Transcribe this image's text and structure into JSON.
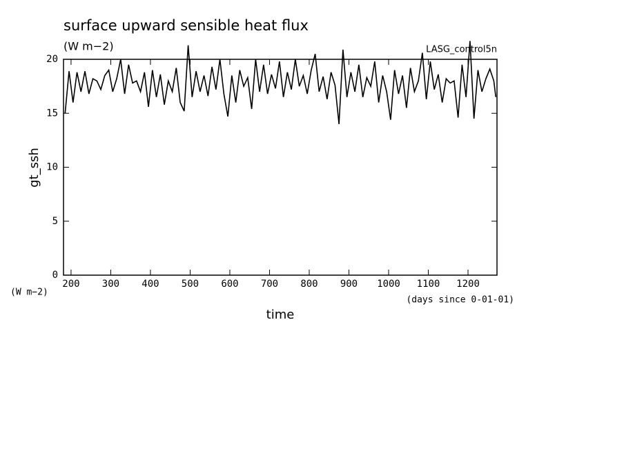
{
  "chart_data": {
    "type": "line",
    "title": "surface upward sensible heat flux",
    "subtitle": "(W m−2)",
    "annotation": "LASG_control5n",
    "ylabel": "gt_ssh",
    "y_units": "(W m−2)",
    "xlabel": "time",
    "x_units": "(days since 0-01-01)",
    "xlim": [
      181,
      1273
    ],
    "ylim": [
      0,
      20
    ],
    "xticks": [
      200,
      300,
      400,
      500,
      600,
      700,
      800,
      900,
      1000,
      1100,
      1200
    ],
    "yticks": [
      0,
      5,
      10,
      15,
      20
    ],
    "series": [
      {
        "color": "#000000",
        "x": [
          185,
          195,
          205,
          215,
          225,
          235,
          245,
          255,
          265,
          275,
          285,
          295,
          305,
          315,
          325,
          335,
          345,
          355,
          365,
          375,
          385,
          395,
          405,
          415,
          425,
          435,
          445,
          455,
          465,
          475,
          485,
          495,
          505,
          515,
          525,
          535,
          545,
          555,
          565,
          575,
          585,
          595,
          605,
          615,
          625,
          635,
          645,
          655,
          665,
          675,
          685,
          695,
          705,
          715,
          725,
          735,
          745,
          755,
          765,
          775,
          785,
          795,
          805,
          815,
          825,
          835,
          845,
          855,
          865,
          875,
          885,
          895,
          905,
          915,
          925,
          935,
          945,
          955,
          965,
          975,
          985,
          995,
          1005,
          1015,
          1025,
          1035,
          1045,
          1055,
          1065,
          1075,
          1085,
          1095,
          1105,
          1115,
          1125,
          1135,
          1145,
          1155,
          1165,
          1175,
          1185,
          1195,
          1205,
          1215,
          1225,
          1235,
          1245,
          1255,
          1265,
          1270
        ],
        "values": [
          15.0,
          18.9,
          16.0,
          18.8,
          17.0,
          18.9,
          16.8,
          18.2,
          18.0,
          17.2,
          18.5,
          19.0,
          17.0,
          18.2,
          20.0,
          16.8,
          19.5,
          17.8,
          18.0,
          17.0,
          18.8,
          15.6,
          19.0,
          16.5,
          18.6,
          15.8,
          18.0,
          17.0,
          19.2,
          16.0,
          15.2,
          21.3,
          16.5,
          18.9,
          17.0,
          18.5,
          16.6,
          19.3,
          17.2,
          20.0,
          16.8,
          14.7,
          18.5,
          16.0,
          19.0,
          17.5,
          18.3,
          15.4,
          20.0,
          17.0,
          19.5,
          16.8,
          18.6,
          17.3,
          19.8,
          16.5,
          18.8,
          17.2,
          20.0,
          17.5,
          18.5,
          16.8,
          19.0,
          20.5,
          17.0,
          18.4,
          16.3,
          18.8,
          17.6,
          14.0,
          20.9,
          16.5,
          18.8,
          17.0,
          19.5,
          16.5,
          18.3,
          17.5,
          19.8,
          16.0,
          18.5,
          17.0,
          14.4,
          19.0,
          16.8,
          18.5,
          15.5,
          19.2,
          17.0,
          18.0,
          20.6,
          16.3,
          19.8,
          17.2,
          18.6,
          16.0,
          18.2,
          17.8,
          18.0,
          14.6,
          19.5,
          16.5,
          21.7,
          14.5,
          19.0,
          17.0,
          18.2,
          19.1,
          18.0,
          16.5
        ]
      }
    ]
  }
}
